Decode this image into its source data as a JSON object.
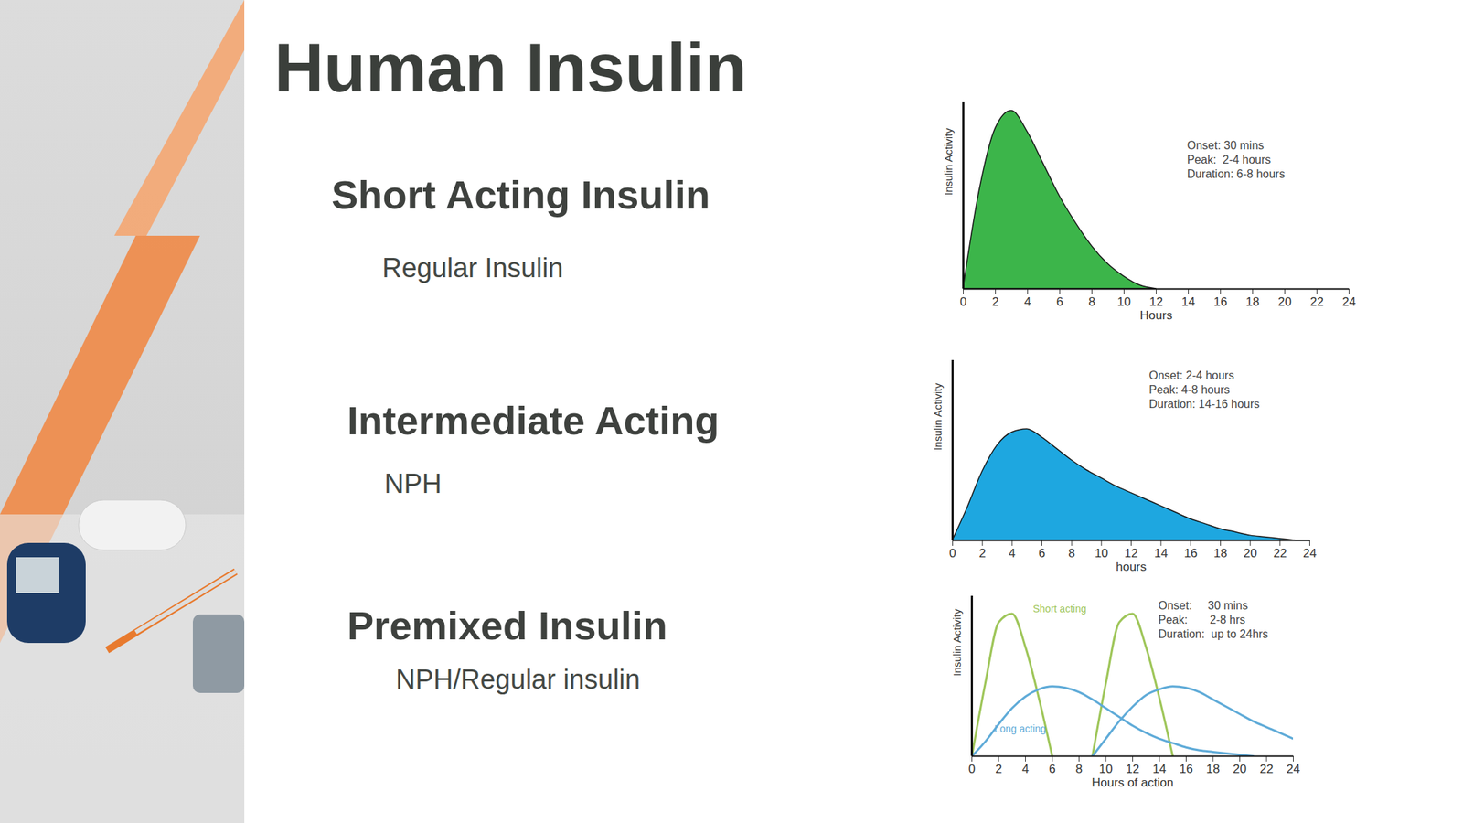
{
  "slide": {
    "title": "Human Insulin",
    "sections": [
      {
        "heading": "Short Acting Insulin",
        "text": "Regular Insulin"
      },
      {
        "heading": "Intermediate Acting",
        "text": "NPH"
      },
      {
        "heading": "Premixed Insulin",
        "text": "NPH/Regular insulin"
      }
    ]
  },
  "chart_data": [
    {
      "type": "area",
      "xlabel": "Hours",
      "ylabel": "Insulin Activity",
      "annotations": [
        "Onset: 30 mins",
        "Peak:  2-4 hours",
        "Duration: 6-8 hours"
      ],
      "color": "#3cb54a",
      "x": [
        0,
        1,
        2,
        3,
        4,
        5,
        6,
        7,
        8,
        9,
        10,
        11,
        12
      ],
      "values": [
        0,
        55,
        90,
        100,
        88,
        70,
        52,
        37,
        24,
        14,
        7,
        2,
        0
      ],
      "xlim": [
        0,
        24
      ],
      "xticks": [
        0,
        2,
        4,
        6,
        8,
        10,
        12,
        14,
        16,
        18,
        20,
        22,
        24
      ],
      "ylim": [
        0,
        105
      ],
      "tick_labels": "x"
    },
    {
      "type": "area",
      "xlabel": "hours",
      "ylabel": "Insulin Activity",
      "annotations": [
        "Onset: 2-4 hours",
        "Peak: 4-8 hours",
        "Duration: 14-16 hours"
      ],
      "color": "#1ea7e0",
      "x": [
        0,
        1,
        2,
        3,
        4,
        5,
        6,
        7,
        8,
        9,
        10,
        11,
        12,
        13,
        14,
        15,
        16,
        17,
        18,
        19,
        20,
        21,
        22,
        23
      ],
      "values": [
        0,
        20,
        42,
        58,
        66,
        68,
        63,
        56,
        49,
        43,
        38,
        33,
        29,
        25,
        21,
        17,
        13,
        10,
        7,
        5,
        3,
        2,
        1,
        0
      ],
      "xlim": [
        0,
        24
      ],
      "xticks": [
        0,
        2,
        4,
        6,
        8,
        10,
        12,
        14,
        16,
        18,
        20,
        22,
        24
      ],
      "ylim": [
        0,
        110
      ],
      "tick_labels": "x"
    },
    {
      "type": "line",
      "xlabel": "Hours of action",
      "ylabel": "Insulin Activity",
      "annotations": [
        "Onset:     30 mins",
        "Peak:       2-8 hrs",
        "Duration:  up to 24hrs"
      ],
      "series": [
        {
          "name": "Short acting",
          "color": "#9fc65a",
          "x": [
            0,
            1,
            2,
            3,
            4,
            5,
            6
          ],
          "values": [
            0,
            50,
            92,
            98,
            75,
            40,
            0
          ]
        },
        {
          "color": "#9fc65a",
          "x": [
            9,
            10,
            11,
            12,
            13,
            14,
            15
          ],
          "values": [
            0,
            50,
            92,
            98,
            75,
            40,
            0
          ]
        },
        {
          "name": "Long acting",
          "color": "#5fabd8",
          "x": [
            0,
            1,
            2,
            3,
            4,
            5,
            6,
            7,
            8,
            9,
            10,
            11,
            12,
            13,
            14,
            15,
            16,
            17,
            18,
            19,
            20,
            21
          ],
          "values": [
            0,
            10,
            22,
            33,
            41,
            46,
            48,
            47,
            44,
            39,
            33,
            27,
            21,
            16,
            12,
            9,
            6,
            4,
            3,
            2,
            1,
            0
          ]
        },
        {
          "color": "#5fabd8",
          "x": [
            9,
            10,
            11,
            12,
            13,
            14,
            15,
            16,
            17,
            18,
            19,
            20,
            21,
            22,
            23,
            24
          ],
          "values": [
            0,
            12,
            24,
            34,
            42,
            46,
            48,
            47,
            44,
            39,
            34,
            29,
            24,
            20,
            16,
            12
          ]
        }
      ],
      "xlim": [
        0,
        24
      ],
      "xticks": [
        0,
        2,
        4,
        6,
        8,
        10,
        12,
        14,
        16,
        18,
        20,
        22,
        24
      ],
      "ylim": [
        0,
        110
      ],
      "tick_labels": "x"
    }
  ]
}
